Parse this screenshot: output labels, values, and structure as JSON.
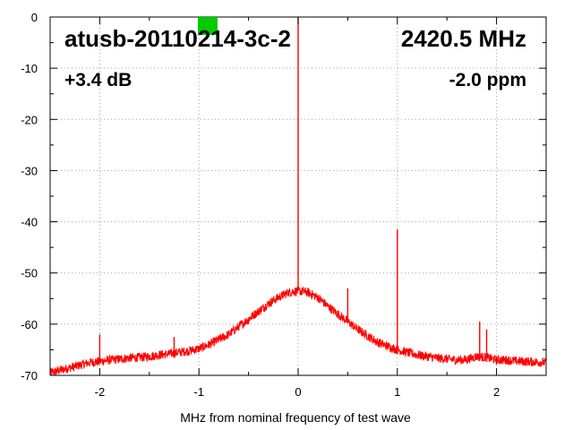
{
  "chart_data": {
    "type": "line",
    "title": "",
    "xlabel": "MHz from nominal frequency of test wave",
    "ylabel": "",
    "xlim": [
      -2.5,
      2.5
    ],
    "ylim": [
      -70,
      0
    ],
    "grid": true,
    "x_ticks": [
      -2,
      -1,
      0,
      1,
      2
    ],
    "y_ticks": [
      0,
      -10,
      -20,
      -30,
      -40,
      -50,
      -60,
      -70
    ],
    "x_tick_labels": [
      "-2",
      "-1",
      "0",
      "1",
      "2"
    ],
    "y_tick_labels": [
      "0",
      "-10",
      "-20",
      "-30",
      "-40",
      "-50",
      "-60",
      "-70"
    ],
    "series_color": "#ff0000",
    "marker_color": "#00cc00",
    "annotations": {
      "device": "atusb-20110214-3c-2",
      "frequency": "2420.5 MHz",
      "gain": "+3.4 dB",
      "offset": "-2.0 ppm"
    },
    "series": [
      {
        "color": "#ff0000",
        "x": [
          -2.5,
          -2.4,
          -2.3,
          -2.2,
          -2.1,
          -2.0,
          -1.9,
          -1.8,
          -1.7,
          -1.6,
          -1.5,
          -1.4,
          -1.3,
          -1.2,
          -1.1,
          -1.0,
          -0.9,
          -0.8,
          -0.7,
          -0.6,
          -0.5,
          -0.4,
          -0.3,
          -0.2,
          -0.1,
          0.0,
          0.1,
          0.2,
          0.3,
          0.4,
          0.5,
          0.6,
          0.7,
          0.8,
          0.9,
          1.0,
          1.1,
          1.2,
          1.3,
          1.4,
          1.5,
          1.6,
          1.7,
          1.8,
          1.9,
          2.0,
          2.1,
          2.2,
          2.3,
          2.4,
          2.5
        ],
        "y": [
          -69.5,
          -69.0,
          -68.5,
          -68.0,
          -67.5,
          -67.3,
          -67.0,
          -66.8,
          -66.6,
          -66.5,
          -66.3,
          -66.0,
          -65.8,
          -65.5,
          -65.2,
          -64.8,
          -64.0,
          -63.0,
          -62.0,
          -60.5,
          -59.0,
          -57.5,
          -56.0,
          -54.8,
          -53.8,
          -53.5,
          -53.8,
          -54.8,
          -56.5,
          -58.0,
          -59.5,
          -61.0,
          -62.3,
          -63.5,
          -64.3,
          -65.0,
          -65.5,
          -66.0,
          -66.3,
          -66.6,
          -66.8,
          -67.0,
          -66.9,
          -66.3,
          -66.5,
          -67.0,
          -67.0,
          -67.2,
          -67.3,
          -67.4,
          -67.5
        ]
      }
    ],
    "spikes": [
      {
        "x": 0.0,
        "y": 0
      },
      {
        "x": 1.0,
        "y": -41.5
      },
      {
        "x": -2.0,
        "y": -62.0
      },
      {
        "x": -1.25,
        "y": -62.5
      },
      {
        "x": -0.5,
        "y": -60.0
      },
      {
        "x": 0.5,
        "y": -53.0
      },
      {
        "x": 1.83,
        "y": -59.5
      },
      {
        "x": 1.9,
        "y": -61.0
      }
    ]
  }
}
